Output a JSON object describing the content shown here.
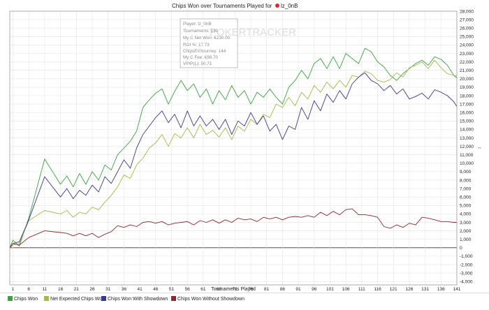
{
  "chart_data": {
    "type": "line",
    "title": "Chips Won over Tournaments Played for",
    "player_badge": "lz_0nB",
    "xlabel": "Tournaments Played",
    "ylabel": "",
    "xlim": [
      0,
      141
    ],
    "ylim": [
      -4400,
      28000
    ],
    "x_ticks": [
      1,
      6,
      11,
      16,
      21,
      26,
      31,
      36,
      41,
      46,
      51,
      56,
      61,
      66,
      71,
      76,
      81,
      86,
      91,
      96,
      101,
      106,
      111,
      116,
      121,
      126,
      131,
      136,
      141
    ],
    "y_ticks": [
      -4000,
      -3000,
      -2000,
      -1000,
      0,
      1000,
      2000,
      3000,
      4000,
      5000,
      6000,
      7000,
      8000,
      9000,
      10000,
      11000,
      12000,
      13000,
      14000,
      15000,
      16000,
      17000,
      18000,
      19000,
      20000,
      21000,
      22000,
      23000,
      24000,
      25000,
      26000,
      27000,
      28000
    ],
    "y_tick_labels": [
      "-4,000",
      "-3,000",
      "-2,000",
      "-1,000",
      "0",
      "1,000",
      "2,000",
      "3,000",
      "4,000",
      "5,000",
      "6,000",
      "7,000",
      "8,000",
      "9,000",
      "10,000",
      "11,000",
      "12,000",
      "13,000",
      "14,000",
      "15,000",
      "16,000",
      "17,000",
      "18,000",
      "19,000",
      "20,000",
      "21,000",
      "22,000",
      "23,000",
      "24,000",
      "25,000",
      "26,000",
      "27,000",
      "28,000"
    ],
    "grid": true,
    "legend_position": "bottom-left",
    "series": [
      {
        "name": "Chips Won",
        "color": "#3fa043",
        "x": [
          0,
          1,
          3,
          6,
          11,
          16,
          18,
          20,
          22,
          24,
          26,
          28,
          30,
          32,
          34,
          36,
          38,
          40,
          42,
          44,
          46,
          48,
          50,
          52,
          54,
          56,
          58,
          60,
          62,
          64,
          66,
          68,
          70,
          72,
          74,
          76,
          78,
          80,
          82,
          84,
          86,
          88,
          90,
          92,
          94,
          96,
          98,
          100,
          102,
          104,
          106,
          108,
          110,
          112,
          114,
          116,
          118,
          120,
          122,
          124,
          126,
          128,
          130,
          132,
          134,
          136,
          138,
          140,
          141
        ],
        "y": [
          0,
          900,
          200,
          3500,
          10500,
          7500,
          8500,
          7200,
          8800,
          7500,
          9000,
          8000,
          9800,
          9200,
          11000,
          11800,
          12600,
          13800,
          16600,
          17500,
          18300,
          18800,
          17000,
          18500,
          19800,
          18600,
          19400,
          17800,
          18800,
          17000,
          18600,
          17500,
          19200,
          17800,
          18600,
          17000,
          18400,
          17800,
          18800,
          17800,
          17000,
          19000,
          19800,
          21000,
          20000,
          21800,
          22400,
          21200,
          22600,
          21200,
          23000,
          22400,
          21800,
          23600,
          23200,
          22000,
          21400,
          20400,
          19800,
          20600,
          21200,
          21800,
          22200,
          21600,
          22600,
          22300,
          21600,
          20400,
          20100
        ]
      },
      {
        "name": "Net Expected Chips Won",
        "color": "#a8b64a",
        "x": [
          0,
          1,
          3,
          6,
          11,
          16,
          18,
          20,
          22,
          24,
          26,
          28,
          30,
          32,
          34,
          36,
          38,
          40,
          42,
          44,
          46,
          48,
          50,
          52,
          54,
          56,
          58,
          60,
          62,
          64,
          66,
          68,
          70,
          72,
          74,
          76,
          78,
          80,
          82,
          84,
          86,
          88,
          90,
          92,
          94,
          96,
          98,
          100,
          102,
          104,
          106,
          108,
          110,
          112,
          114,
          116,
          118,
          120,
          122,
          124,
          126,
          128,
          130,
          132,
          134,
          136,
          138,
          140,
          141
        ],
        "y": [
          0,
          300,
          500,
          3200,
          4400,
          4000,
          4400,
          3600,
          4200,
          4000,
          4800,
          4500,
          5400,
          6200,
          7200,
          8600,
          8200,
          9800,
          10600,
          11800,
          12400,
          13400,
          12000,
          13500,
          13000,
          14200,
          13000,
          14600,
          13400,
          13900,
          13100,
          14200,
          12800,
          14400,
          13800,
          15200,
          14600,
          15800,
          15400,
          17000,
          16600,
          17800,
          16800,
          18400,
          17600,
          19200,
          18400,
          19600,
          18800,
          19800,
          19000,
          20400,
          20200,
          20900,
          20600,
          19800,
          19600,
          19900,
          20700,
          20200,
          21300,
          21600,
          22000,
          21200,
          22200,
          21300,
          20600,
          20400,
          20300
        ]
      },
      {
        "name": "Chips Won With Showdown",
        "color": "#3a3a8c",
        "x": [
          0,
          1,
          3,
          6,
          11,
          16,
          18,
          20,
          22,
          24,
          26,
          28,
          30,
          32,
          34,
          36,
          38,
          40,
          42,
          44,
          46,
          48,
          50,
          52,
          54,
          56,
          58,
          60,
          62,
          64,
          66,
          68,
          70,
          72,
          74,
          76,
          78,
          80,
          82,
          84,
          86,
          88,
          90,
          92,
          94,
          96,
          98,
          100,
          102,
          104,
          106,
          108,
          110,
          112,
          114,
          116,
          118,
          120,
          122,
          124,
          126,
          128,
          130,
          132,
          134,
          136,
          138,
          140,
          141
        ],
        "y": [
          0,
          500,
          700,
          3300,
          8400,
          6000,
          7000,
          5800,
          6800,
          6200,
          7400,
          6600,
          8400,
          7600,
          9000,
          10400,
          9400,
          11800,
          13400,
          14400,
          15400,
          16200,
          14800,
          15800,
          14200,
          16200,
          14400,
          15600,
          14400,
          15200,
          14000,
          15200,
          13400,
          15000,
          14400,
          16000,
          14600,
          15600,
          13800,
          14600,
          12800,
          14400,
          14000,
          16600,
          15200,
          17400,
          16200,
          18200,
          17200,
          18600,
          17600,
          19400,
          20200,
          20700,
          19800,
          19400,
          18600,
          19200,
          18200,
          18800,
          17600,
          17900,
          18300,
          17600,
          18700,
          18400,
          18000,
          17300,
          16700
        ]
      },
      {
        "name": "Chips Won Without Showdown",
        "color": "#8c2a2e",
        "x": [
          0,
          1,
          3,
          6,
          11,
          16,
          18,
          20,
          22,
          24,
          26,
          28,
          30,
          32,
          34,
          36,
          38,
          40,
          42,
          44,
          46,
          48,
          50,
          52,
          54,
          56,
          58,
          60,
          62,
          64,
          66,
          68,
          70,
          72,
          74,
          76,
          78,
          80,
          82,
          84,
          86,
          88,
          90,
          92,
          94,
          96,
          98,
          100,
          102,
          104,
          106,
          108,
          110,
          112,
          114,
          116,
          118,
          120,
          122,
          124,
          126,
          128,
          130,
          132,
          134,
          136,
          138,
          140,
          141
        ],
        "y": [
          0,
          500,
          300,
          1200,
          2000,
          1800,
          1700,
          1400,
          1700,
          1400,
          1700,
          1200,
          1600,
          1900,
          2600,
          2400,
          2700,
          2500,
          3000,
          3100,
          2900,
          3100,
          2700,
          2900,
          3000,
          3100,
          2700,
          3200,
          3000,
          3300,
          2900,
          3300,
          3000,
          3500,
          3300,
          3400,
          3100,
          3600,
          3400,
          3600,
          3300,
          3600,
          3700,
          3600,
          3800,
          3600,
          4200,
          3800,
          4300,
          3900,
          4500,
          4600,
          3900,
          3900,
          3800,
          3600,
          2500,
          2300,
          2700,
          2400,
          2900,
          2700,
          3600,
          3500,
          3300,
          3100,
          3100,
          3000,
          3000
        ]
      }
    ]
  },
  "tooltip": {
    "lines": [
      "Player: lz_0nB",
      "Tournaments: 141",
      "My C Net Won: €230.00",
      "ROI %: 17.73",
      "ChipsEV/tourney: 144",
      "My C Fee: €98.70",
      "VPIP(L): 50.71"
    ],
    "watermark": "POKERTRACKER"
  },
  "colors": {
    "grid": "#e4e4e4",
    "zero_line": "#333333",
    "tooltip_border": "#b0b0b0",
    "badge": "#d32f2f"
  },
  "icons": {
    "player_badge_icon": "poker-chip-icon",
    "y_axis_marker": "left-right-arrow-icon"
  }
}
